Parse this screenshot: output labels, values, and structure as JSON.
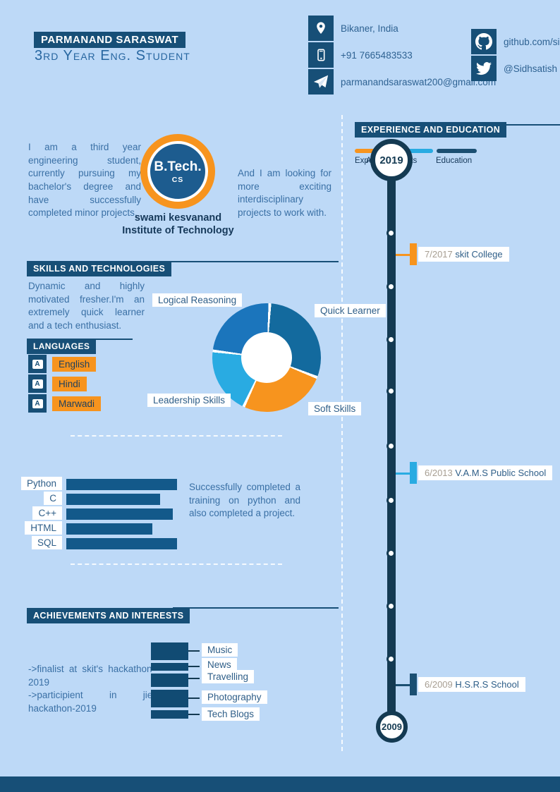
{
  "palette": {
    "background": "#bdd9f7",
    "navy": "#174f77",
    "dark_navy": "#143a52",
    "orange": "#f7941e",
    "cyan": "#29abe2",
    "medium_blue": "#1b75bc",
    "bar_blue": "#13598a",
    "interest_navy": "#114b73"
  },
  "header": {
    "name": "PARMANAND SARASWAT",
    "title": "3rd Year Eng. Student",
    "contact": [
      {
        "icon": "location-pin-icon",
        "text": "Bikaner, India"
      },
      {
        "icon": "phone-icon",
        "text": "+91 7665483533"
      },
      {
        "icon": "paper-plane-icon",
        "text": "parmanandsaraswat200@gmail.com"
      }
    ],
    "social": [
      {
        "icon": "github-icon",
        "text": "github.com/si"
      },
      {
        "icon": "twitter-icon",
        "text": "@Sidhsatish"
      }
    ]
  },
  "about": {
    "left_text": "I am a third year engineering student, currently pursuing my bachelor's degree and have successfully completed minor projects.",
    "logo_line1": "B.Tech.",
    "logo_line2": "CS",
    "institute_line1": "swami kesvanand",
    "institute_line2": "Institute of Technology",
    "right_text": "And I am looking for more exciting interdisciplinary projects to work with."
  },
  "skills_section": {
    "heading": "SKILLS AND TECHNOLOGIES",
    "intro": "Dynamic and highly motivated fresher.I'm an extremely quick learner and a tech enthusiast.",
    "languages_heading": "LANGUAGES",
    "languages": [
      {
        "label": "English"
      },
      {
        "label": "Hindi"
      },
      {
        "label": "Marwadi"
      }
    ],
    "python_note": "Successfully completed a training on python and also completed a project."
  },
  "achievements_section": {
    "heading": "ACHIEVEMENTS AND INTERESTS",
    "line1": "->finalist at skit's hackathon-2019",
    "line2": "->participient in jiet hackathon-2019"
  },
  "timeline": {
    "heading": "EXPERIENCE AND EDUCATION",
    "legend": [
      {
        "label": "Experience",
        "color": "#f7941e"
      },
      {
        "label": "Achievements",
        "color": "#29abe2"
      },
      {
        "label": "Education",
        "color": "#1b4f72"
      }
    ],
    "top_year": "2019",
    "bottom_year": "2009",
    "items": [
      {
        "date": "7/2017",
        "name": "skit College",
        "color": "#f7941e"
      },
      {
        "date": "6/2013",
        "name": "V.A.M.S Public School",
        "color": "#29abe2"
      },
      {
        "date": "6/2009",
        "name": "H.S.R.S School",
        "color": "#1b4f72"
      }
    ]
  },
  "chart_data": [
    {
      "type": "pie",
      "subtype": "donut",
      "title": "Skills donut",
      "labels": [
        "Quick Learner",
        "Soft Skills",
        "Leadership Skills",
        "Logical Reasoning"
      ],
      "values": [
        30,
        26,
        20,
        24
      ],
      "colors": [
        "#136a9e",
        "#f7941e",
        "#29abe2",
        "#1b75bc"
      ],
      "start_angle": 5,
      "legend_position": "outside-labels"
    },
    {
      "type": "bar",
      "orientation": "horizontal",
      "title": "Programming skills",
      "categories": [
        "Python",
        "C",
        "C++",
        "HTML",
        "SQL"
      ],
      "values": [
        100,
        85,
        96,
        78,
        100
      ],
      "color": "#13598a",
      "xlim": [
        0,
        100
      ]
    },
    {
      "type": "bar",
      "orientation": "vertical-stacked",
      "title": "Interests",
      "categories": [
        "Music",
        "News",
        "Travelling",
        "Photography",
        "Tech Blogs"
      ],
      "values": [
        25,
        11,
        19,
        25,
        12
      ],
      "color": "#114b73"
    }
  ]
}
